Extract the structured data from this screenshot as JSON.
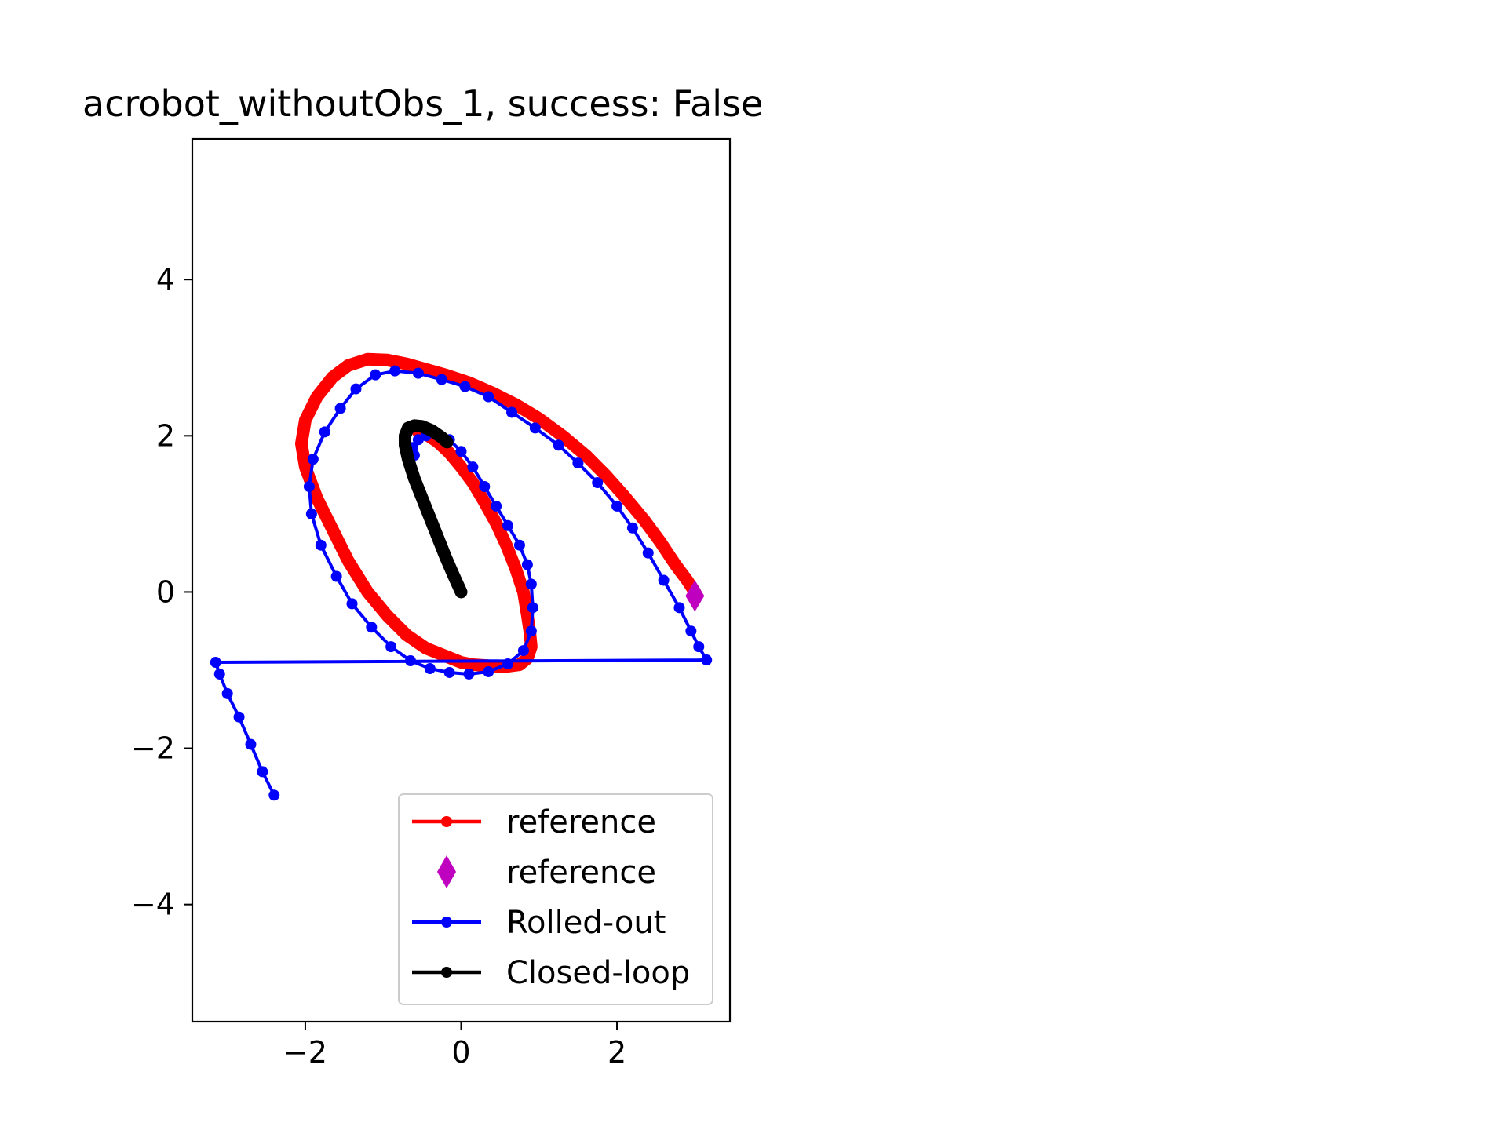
{
  "chart_data": {
    "type": "line",
    "title": "acrobot_withoutObs_1, success: False",
    "xlabel": "",
    "ylabel": "",
    "xlim": [
      -3.45,
      3.45
    ],
    "ylim": [
      -5.5,
      5.8
    ],
    "xticks": [
      -2,
      0,
      2
    ],
    "yticks": [
      -4,
      -2,
      0,
      2,
      4
    ],
    "xtick_labels": [
      "−2",
      "0",
      "2"
    ],
    "ytick_labels": [
      "−4",
      "−2",
      "0",
      "2",
      "4"
    ],
    "grid": false,
    "legend_placement": "lower right",
    "series": [
      {
        "name": "reference",
        "color": "#ff0000",
        "style": "line-with-dots",
        "x": [
          -0.55,
          -0.45,
          -0.3,
          -0.15,
          0.0,
          0.15,
          0.3,
          0.45,
          0.58,
          0.7,
          0.8,
          0.85,
          0.88,
          0.9,
          0.85,
          0.75,
          0.6,
          0.45,
          0.3,
          0.15,
          0.0,
          -0.2,
          -0.45,
          -0.7,
          -0.95,
          -1.2,
          -1.45,
          -1.65,
          -1.85,
          -2.0,
          -2.05,
          -2.0,
          -1.85,
          -1.65,
          -1.45,
          -1.2,
          -0.95,
          -0.7,
          -0.45,
          -0.2,
          0.1,
          0.4,
          0.7,
          1.0,
          1.3,
          1.6,
          1.85,
          2.1,
          2.35,
          2.55,
          2.75,
          2.9,
          3.0
        ],
        "y": [
          2.05,
          2.02,
          1.92,
          1.78,
          1.6,
          1.4,
          1.15,
          0.88,
          0.6,
          0.3,
          0.0,
          -0.3,
          -0.5,
          -0.7,
          -0.85,
          -0.93,
          -0.95,
          -0.95,
          -0.94,
          -0.93,
          -0.9,
          -0.82,
          -0.72,
          -0.55,
          -0.3,
          0.0,
          0.4,
          0.8,
          1.2,
          1.6,
          1.9,
          2.2,
          2.5,
          2.75,
          2.9,
          2.98,
          2.97,
          2.92,
          2.85,
          2.78,
          2.68,
          2.55,
          2.4,
          2.22,
          2.0,
          1.75,
          1.5,
          1.22,
          0.92,
          0.65,
          0.35,
          0.15,
          0.0
        ]
      },
      {
        "name": "reference",
        "color": "#bf00bf",
        "style": "diamond-marker",
        "x": [
          3.0
        ],
        "y": [
          -0.05
        ]
      },
      {
        "name": "Rolled-out",
        "color": "#0000ff",
        "style": "line-with-dots",
        "x": [
          -2.4,
          -2.55,
          -2.7,
          -2.85,
          -3.0,
          -3.1,
          -3.15,
          3.15,
          3.05,
          2.95,
          2.8,
          2.6,
          2.4,
          2.2,
          2.0,
          1.75,
          1.5,
          1.25,
          0.95,
          0.65,
          0.35,
          0.05,
          -0.25,
          -0.55,
          -0.85,
          -1.1,
          -1.35,
          -1.55,
          -1.75,
          -1.9,
          -1.95,
          -1.92,
          -1.8,
          -1.6,
          -1.4,
          -1.15,
          -0.9,
          -0.65,
          -0.4,
          -0.15,
          0.1,
          0.35,
          0.6,
          0.8,
          0.9,
          0.92,
          0.9,
          0.85,
          0.75,
          0.6,
          0.45,
          0.3,
          0.15,
          0.0,
          -0.15,
          -0.3,
          -0.45,
          -0.55,
          -0.62,
          -0.6
        ],
        "y": [
          -2.6,
          -2.3,
          -1.95,
          -1.6,
          -1.3,
          -1.05,
          -0.9,
          -0.87,
          -0.7,
          -0.5,
          -0.2,
          0.15,
          0.5,
          0.82,
          1.1,
          1.4,
          1.65,
          1.88,
          2.1,
          2.3,
          2.5,
          2.63,
          2.72,
          2.8,
          2.83,
          2.78,
          2.6,
          2.35,
          2.05,
          1.7,
          1.35,
          1.0,
          0.6,
          0.2,
          -0.15,
          -0.45,
          -0.7,
          -0.88,
          -0.98,
          -1.03,
          -1.05,
          -1.02,
          -0.92,
          -0.75,
          -0.5,
          -0.2,
          0.1,
          0.35,
          0.6,
          0.85,
          1.1,
          1.35,
          1.6,
          1.8,
          1.95,
          2.0,
          2.0,
          1.95,
          1.85,
          1.75
        ]
      },
      {
        "name": "Closed-loop",
        "color": "#000000",
        "style": "line-with-dots",
        "x": [
          0.0,
          -0.1,
          -0.2,
          -0.3,
          -0.4,
          -0.5,
          -0.6,
          -0.68,
          -0.72,
          -0.72,
          -0.68,
          -0.6,
          -0.5,
          -0.38,
          -0.25,
          -0.18
        ],
        "y": [
          0.0,
          0.22,
          0.45,
          0.7,
          0.95,
          1.2,
          1.45,
          1.7,
          1.88,
          2.0,
          2.1,
          2.13,
          2.12,
          2.07,
          1.98,
          1.92
        ]
      }
    ]
  }
}
